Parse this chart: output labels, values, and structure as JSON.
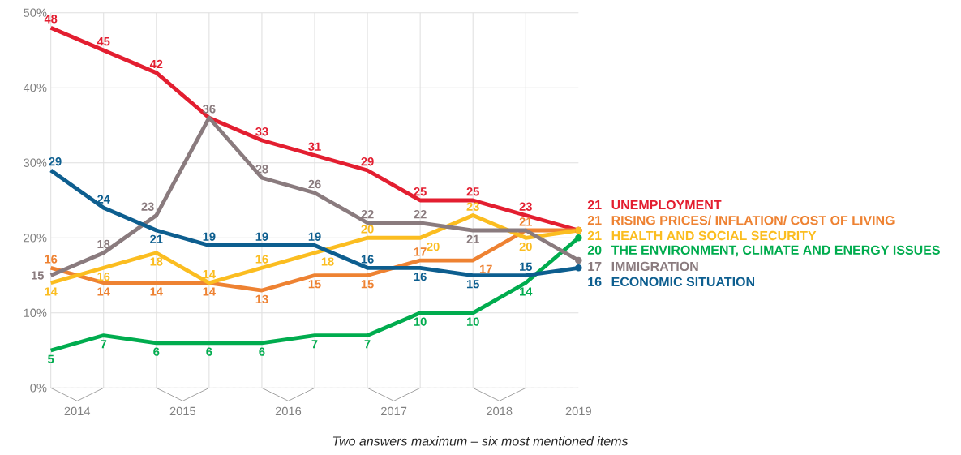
{
  "chart_data": {
    "type": "line",
    "annotations": [
      "*Two answers maximum – six most mentioned items*"
    ],
    "x": [
      2014.25,
      2014.75,
      2015.25,
      2015.75,
      2016.25,
      2016.75,
      2017.25,
      2017.75,
      2018.25,
      2018.75,
      2019.25
    ],
    "xlim": [
      2014.25,
      2019.25
    ],
    "xticks": [
      {
        "value": 2014.25,
        "label": null
      },
      {
        "value": 2014.75,
        "label": null
      },
      {
        "value": 2015.25,
        "label": null
      },
      {
        "value": 2015.75,
        "label": null
      },
      {
        "value": 2016.25,
        "label": null
      },
      {
        "value": 2016.75,
        "label": null
      },
      {
        "value": 2017.25,
        "label": null
      },
      {
        "value": 2017.75,
        "label": null
      },
      {
        "value": 2018.25,
        "label": null
      },
      {
        "value": 2018.75,
        "label": null
      },
      {
        "value": 2014.5,
        "label": "2014"
      },
      {
        "value": 2015.5,
        "label": "2015"
      },
      {
        "value": 2016.5,
        "label": "2016"
      },
      {
        "value": 2017.5,
        "label": "2017"
      },
      {
        "value": 2018.5,
        "label": "2018"
      },
      {
        "value": 2019.25,
        "label": "2019"
      }
    ],
    "ylim": [
      0,
      50
    ],
    "yticks": [
      {
        "value": 0,
        "label": "0%"
      },
      {
        "value": 10,
        "label": "10%"
      },
      {
        "value": 20,
        "label": "20%"
      },
      {
        "value": 30,
        "label": "30%"
      },
      {
        "value": 40,
        "label": "40%"
      },
      {
        "value": 50,
        "label": "50%"
      }
    ],
    "grid": true,
    "series": [
      {
        "name": "UNEMPLOYMENT",
        "color": "#e31e30",
        "values": [
          48,
          45,
          42,
          36,
          33,
          31,
          29,
          25,
          25,
          23,
          21
        ],
        "value_labels": [
          "48",
          "45",
          "42",
          null,
          "33",
          "31",
          "29",
          "25",
          "25",
          "23",
          "21"
        ]
      },
      {
        "name": "RISING PRICES/ INFLATION/ COST OF LIVING",
        "color": "#ee8232",
        "values": [
          16,
          14,
          14,
          14,
          13,
          15,
          15,
          17,
          17,
          21,
          21
        ],
        "value_labels": [
          "16",
          "14",
          "14",
          "14",
          "13",
          "15",
          "15",
          "17",
          "17",
          "21",
          "21"
        ]
      },
      {
        "name": "HEALTH AND SOCIAL SECURITY",
        "color": "#fbbd20",
        "values": [
          14,
          16,
          18,
          14,
          16,
          18,
          20,
          20,
          23,
          20,
          21
        ],
        "value_labels": [
          "14",
          "16",
          "18",
          "14",
          "16",
          "18",
          "20",
          "20",
          "23",
          "20",
          "21"
        ]
      },
      {
        "name": "THE ENVIRONMENT, CLIMATE AND ENERGY ISSUES",
        "color": "#00ac4e",
        "values": [
          5,
          7,
          6,
          6,
          6,
          7,
          7,
          10,
          10,
          14,
          20
        ],
        "value_labels": [
          "5",
          "7",
          "6",
          "6",
          "6",
          "7",
          "7",
          "10",
          "10",
          "14",
          "20"
        ]
      },
      {
        "name": "IMMIGRATION",
        "color": "#8a7b7e",
        "values": [
          15,
          18,
          23,
          36,
          28,
          26,
          22,
          22,
          21,
          21,
          17
        ],
        "value_labels": [
          "15",
          "18",
          "23",
          "36",
          "28",
          "26",
          "22",
          "22",
          "21",
          null,
          "17"
        ]
      },
      {
        "name": "ECONOMIC SITUATION",
        "color": "#0d5e8f",
        "values": [
          29,
          24,
          21,
          19,
          19,
          19,
          16,
          16,
          15,
          15,
          16
        ],
        "value_labels": [
          "29",
          "24",
          "21",
          "19",
          "19",
          "19",
          "16",
          "16",
          "15",
          "15",
          "16"
        ]
      }
    ]
  }
}
